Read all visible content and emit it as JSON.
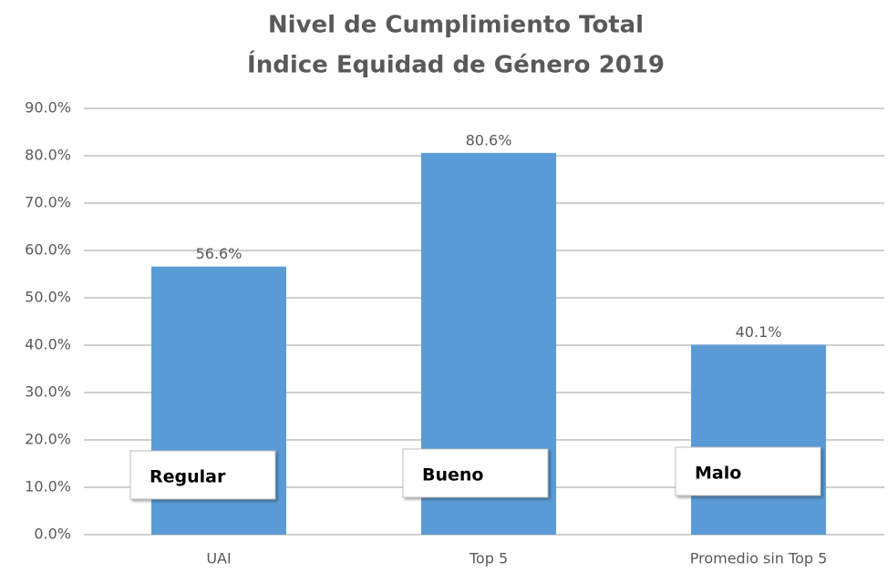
{
  "chart_data": {
    "type": "bar",
    "title": [
      "Nivel de Cumplimiento Total",
      "Índice Equidad de Género 2019"
    ],
    "categories": [
      "UAI",
      "Top 5",
      "Promedio sin Top 5"
    ],
    "values": [
      56.6,
      80.6,
      40.1
    ],
    "value_labels": [
      "56.6%",
      "80.6%",
      "40.1%"
    ],
    "annotations": [
      "Regular",
      "Bueno",
      "Malo"
    ],
    "color": "#5b9bd5",
    "ylim": [
      0,
      90
    ],
    "yticks": [
      {
        "value": 0,
        "label": "0.0%"
      },
      {
        "value": 10,
        "label": "10.0%"
      },
      {
        "value": 20,
        "label": "20.0%"
      },
      {
        "value": 30,
        "label": "30.0%"
      },
      {
        "value": 40,
        "label": "40.0%"
      },
      {
        "value": 50,
        "label": "50.0%"
      },
      {
        "value": 60,
        "label": "60.0%"
      },
      {
        "value": 70,
        "label": "70.0%"
      },
      {
        "value": 80,
        "label": "80.0%"
      },
      {
        "value": 90,
        "label": "90.0%"
      }
    ],
    "grid": true
  }
}
